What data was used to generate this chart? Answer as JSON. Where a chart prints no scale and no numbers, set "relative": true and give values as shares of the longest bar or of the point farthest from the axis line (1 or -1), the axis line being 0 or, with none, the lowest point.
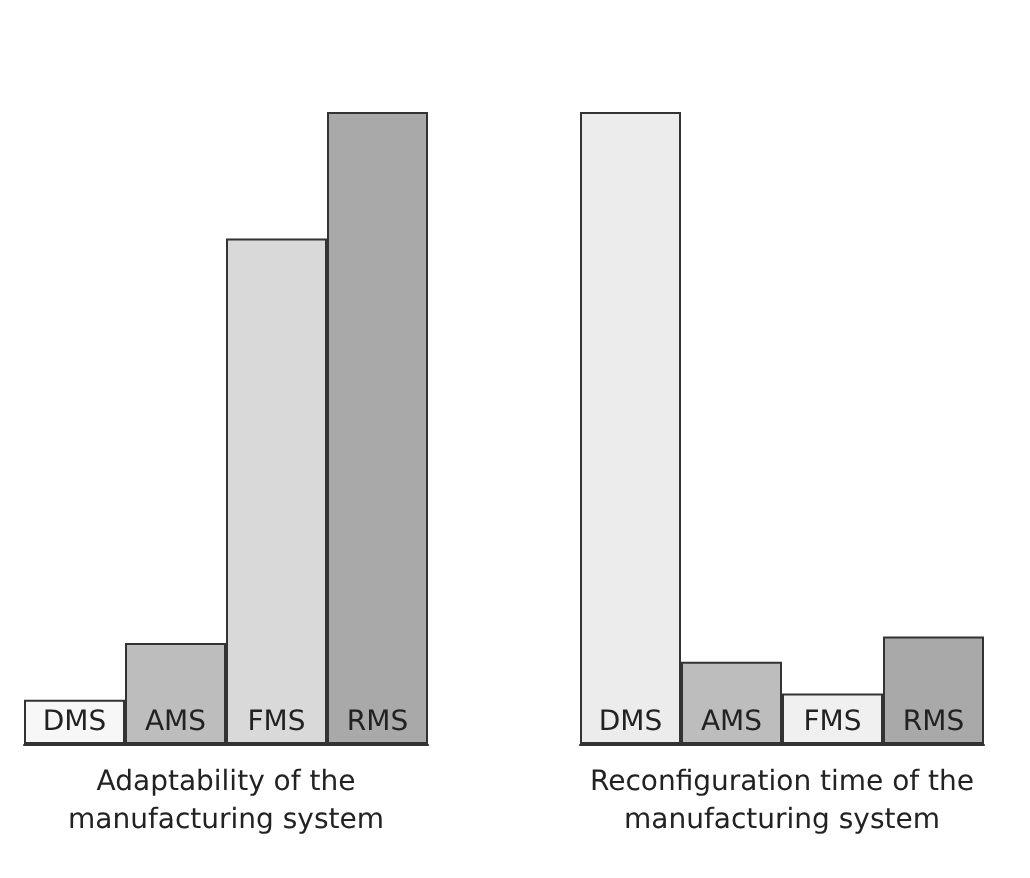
{
  "chart_data": [
    {
      "type": "bar",
      "relative": true,
      "xlabel": "Adaptability of the manufacturing system",
      "categories": [
        "DMS",
        "AMS",
        "FMS",
        "RMS"
      ],
      "values": [
        0.07,
        0.16,
        0.8,
        1
      ],
      "colors": [
        "#f7f7f7",
        "#bdbdbd",
        "#d9d9d9",
        "#a9a9a9"
      ]
    },
    {
      "type": "bar",
      "relative": true,
      "xlabel": "Reconfiguration time of the manufacturing system",
      "categories": [
        "DMS",
        "AMS",
        "FMS",
        "RMS"
      ],
      "values": [
        1,
        0.13,
        0.08,
        0.17
      ],
      "colors": [
        "#ececec",
        "#bdbdbd",
        "#f0f0f0",
        "#a9a9a9"
      ]
    }
  ]
}
